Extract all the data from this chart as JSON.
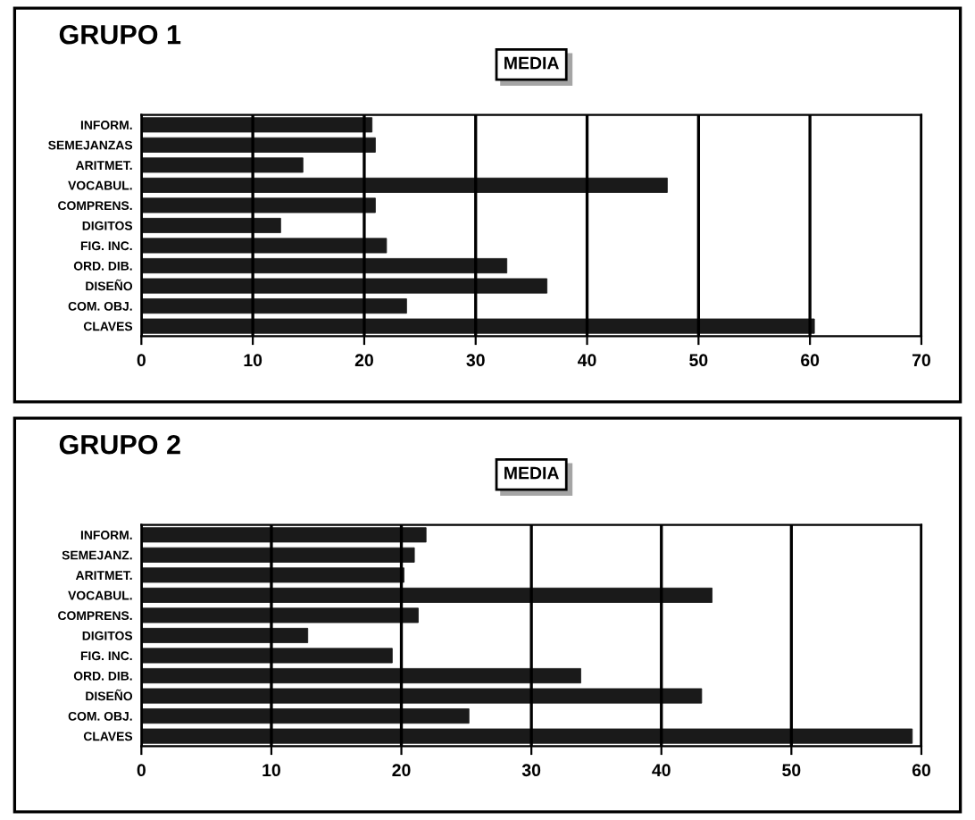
{
  "chart_data": [
    {
      "type": "bar",
      "title": "GRUPO 1",
      "orientation": "horizontal",
      "legend": "top",
      "grid": "x",
      "categories": [
        "INFORM.",
        "SEMEJANZAS",
        "ARITMET.",
        "VOCABUL.",
        "COMPRENS.",
        "DIGITOS",
        "FIG. INC.",
        "ORD. DIB.",
        "DISEÑO",
        "COM. OBJ.",
        "CLAVES"
      ],
      "series": [
        {
          "name": "MEDIA",
          "color": "#1a1a1a",
          "values": [
            20.7,
            21,
            14.5,
            47.2,
            21,
            12.5,
            22,
            32.8,
            36.4,
            23.8,
            60.4
          ]
        }
      ],
      "xlim": [
        0,
        70
      ],
      "xticks": [
        0,
        10,
        20,
        30,
        40,
        50,
        60,
        70
      ]
    },
    {
      "type": "bar",
      "title": "GRUPO 2",
      "orientation": "horizontal",
      "legend": "top",
      "grid": "x",
      "categories": [
        "INFORM.",
        "SEMEJANZ.",
        "ARITMET.",
        "VOCABUL.",
        "COMPRENS.",
        "DIGITOS",
        "FIG. INC.",
        "ORD. DIB.",
        "DISEÑO",
        "COM. OBJ.",
        "CLAVES"
      ],
      "series": [
        {
          "name": "MEDIA",
          "color": "#1a1a1a",
          "values": [
            21.9,
            21,
            20.2,
            43.9,
            21.3,
            12.8,
            19.3,
            33.8,
            43.1,
            25.2,
            59.3
          ]
        }
      ],
      "xlim": [
        0,
        60
      ],
      "xticks": [
        0,
        10,
        20,
        30,
        40,
        50,
        60
      ]
    }
  ]
}
